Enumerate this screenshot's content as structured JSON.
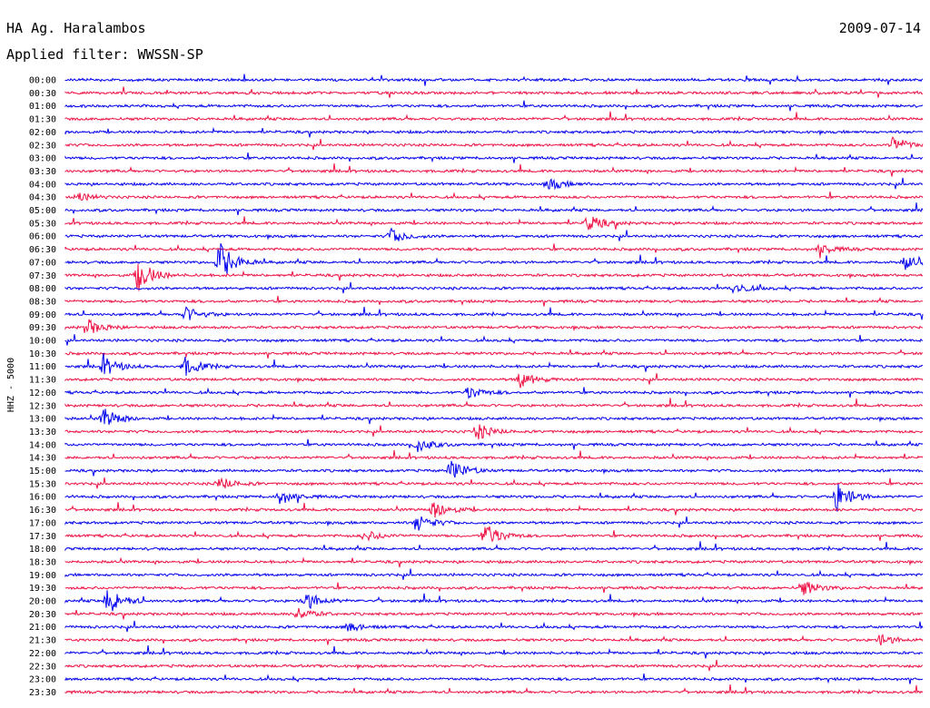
{
  "header": {
    "station": "HA Ag. Haralambos",
    "date": "2009-07-14",
    "filter": "Applied filter: WWSSN-SP"
  },
  "chart_data": {
    "type": "line",
    "title": "",
    "ylabel": "HHZ - 5000",
    "colors": [
      "#0000ee",
      "#ee1144"
    ],
    "grid": false,
    "legend": "none",
    "rows": [
      "00:00",
      "00:30",
      "01:00",
      "01:30",
      "02:00",
      "02:30",
      "03:00",
      "03:30",
      "04:00",
      "04:30",
      "05:00",
      "05:30",
      "06:00",
      "06:30",
      "07:00",
      "07:30",
      "08:00",
      "08:30",
      "09:00",
      "09:30",
      "10:00",
      "10:30",
      "11:00",
      "11:30",
      "12:00",
      "12:30",
      "13:00",
      "13:30",
      "14:00",
      "14:30",
      "15:00",
      "15:30",
      "16:00",
      "16:30",
      "17:00",
      "17:30",
      "18:00",
      "18:30",
      "19:00",
      "19:30",
      "20:00",
      "20:30",
      "21:00",
      "21:30",
      "22:00",
      "22:30",
      "23:00",
      "23:30"
    ],
    "events": [
      {
        "row": "02:30",
        "at": 0.965,
        "amp": 9
      },
      {
        "row": "04:00",
        "at": 0.565,
        "amp": 6
      },
      {
        "row": "04:30",
        "at": 0.015,
        "amp": 5
      },
      {
        "row": "05:30",
        "at": 0.61,
        "amp": 9
      },
      {
        "row": "06:00",
        "at": 0.38,
        "amp": 8
      },
      {
        "row": "06:30",
        "at": 0.88,
        "amp": 6
      },
      {
        "row": "07:00",
        "at": 0.18,
        "amp": 22
      },
      {
        "row": "07:00",
        "at": 0.98,
        "amp": 8
      },
      {
        "row": "07:30",
        "at": 0.085,
        "amp": 18
      },
      {
        "row": "08:00",
        "at": 0.78,
        "amp": 6
      },
      {
        "row": "09:00",
        "at": 0.14,
        "amp": 8
      },
      {
        "row": "09:30",
        "at": 0.025,
        "amp": 9
      },
      {
        "row": "11:00",
        "at": 0.045,
        "amp": 10
      },
      {
        "row": "11:00",
        "at": 0.14,
        "amp": 10
      },
      {
        "row": "11:30",
        "at": 0.53,
        "amp": 9
      },
      {
        "row": "12:00",
        "at": 0.47,
        "amp": 7
      },
      {
        "row": "13:00",
        "at": 0.045,
        "amp": 11
      },
      {
        "row": "13:30",
        "at": 0.48,
        "amp": 9
      },
      {
        "row": "14:00",
        "at": 0.41,
        "amp": 8
      },
      {
        "row": "15:00",
        "at": 0.45,
        "amp": 12
      },
      {
        "row": "15:30",
        "at": 0.18,
        "amp": 7
      },
      {
        "row": "16:00",
        "at": 0.9,
        "amp": 16
      },
      {
        "row": "16:00",
        "at": 0.25,
        "amp": 8
      },
      {
        "row": "16:30",
        "at": 0.43,
        "amp": 10
      },
      {
        "row": "17:00",
        "at": 0.41,
        "amp": 10
      },
      {
        "row": "17:30",
        "at": 0.49,
        "amp": 14
      },
      {
        "row": "17:30",
        "at": 0.35,
        "amp": 6
      },
      {
        "row": "19:30",
        "at": 0.86,
        "amp": 9
      },
      {
        "row": "20:00",
        "at": 0.05,
        "amp": 15
      },
      {
        "row": "20:00",
        "at": 0.28,
        "amp": 10
      },
      {
        "row": "20:30",
        "at": 0.27,
        "amp": 7
      },
      {
        "row": "21:00",
        "at": 0.33,
        "amp": 5
      },
      {
        "row": "21:30",
        "at": 0.95,
        "amp": 6
      }
    ]
  }
}
